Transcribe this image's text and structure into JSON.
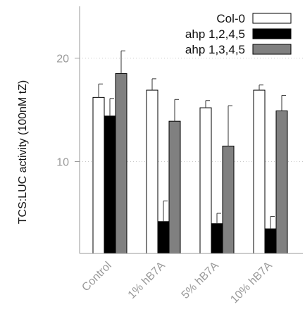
{
  "chart_data": {
    "type": "bar",
    "categories": [
      "Control",
      "1% hB7A",
      "5% hB7A",
      "10% hB7A"
    ],
    "series": [
      {
        "name": "Col-0",
        "color": "#ffffff",
        "values": [
          16.2,
          16.9,
          15.2,
          16.9
        ],
        "errors": [
          1.3,
          1.1,
          0.7,
          0.5
        ]
      },
      {
        "name": "ahp 1,2,4,5",
        "color": "#000000",
        "values": [
          14.4,
          4.2,
          4.0,
          3.5
        ],
        "errors": [
          1.7,
          2.0,
          1.0,
          1.2
        ]
      },
      {
        "name": "ahp 1,3,4,5",
        "color": "#808080",
        "values": [
          18.5,
          13.9,
          11.5,
          14.9
        ],
        "errors": [
          2.2,
          2.1,
          3.9,
          1.5
        ]
      }
    ],
    "title": "",
    "xlabel": "",
    "ylabel": "TCS:LUC activity (100nM tZ)",
    "ylim": [
      1,
      25
    ],
    "yticks": [
      10,
      20
    ],
    "grid": "horizontal dotted",
    "legend": "top-right"
  }
}
